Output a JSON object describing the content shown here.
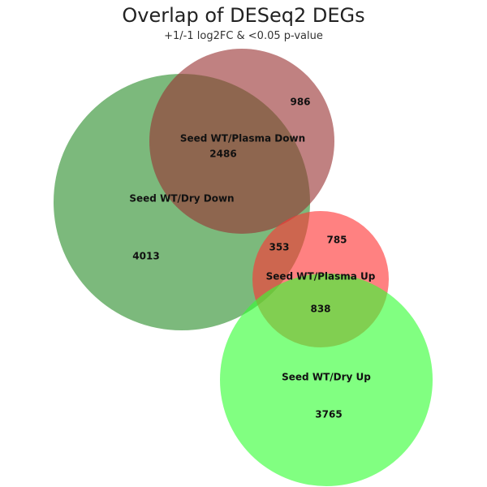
{
  "title": "Overlap of DESeq2 DEGs",
  "subtitle": "+1/-1 log2FC & <0.05 p-value",
  "sets": [
    {
      "name": "Seed WT/Dry Down",
      "color": "#4a9e4a"
    },
    {
      "name": "Seed WT/Plasma Down",
      "color": "#993333"
    },
    {
      "name": "Seed WT/Plasma Up",
      "color": "#ff3333"
    },
    {
      "name": "Seed WT/Dry Up",
      "color": "#33ff33"
    }
  ],
  "counts": {
    "dry_down_only": "4013",
    "plasma_down_only": "986",
    "dry_down_and_plasma_down": "2486",
    "plasma_up_only": "785",
    "dry_down_and_plasma_up": "353",
    "plasma_up_and_dry_up": "838",
    "dry_up_only": "3765"
  }
}
